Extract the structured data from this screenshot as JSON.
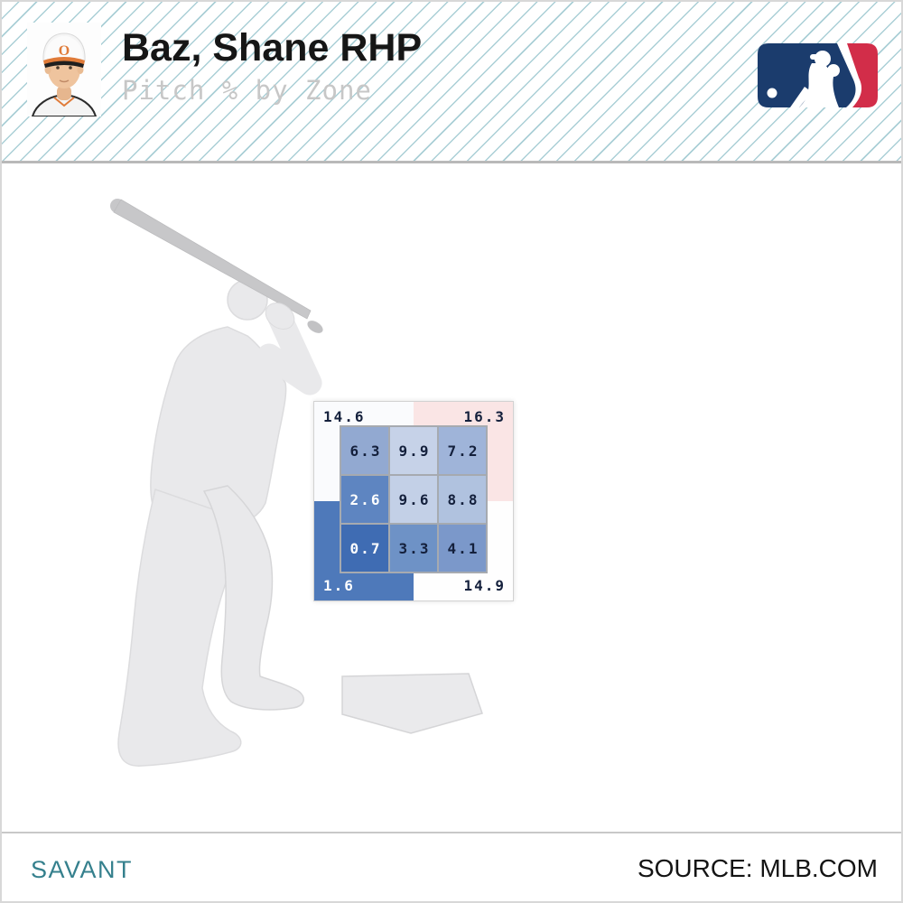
{
  "header": {
    "title": "Baz, Shane RHP",
    "subtitle": "Pitch % by Zone",
    "logo": {
      "navy": "#1b3c6d",
      "red": "#d22d49"
    }
  },
  "footer": {
    "brand": "SAVANT",
    "brand_color": "#35808d",
    "source": "SOURCE: MLB.COM"
  },
  "icons": {
    "player_photo": "player-headshot-photo",
    "mlb_logo": "mlb-logo",
    "batter": "batter-silhouette",
    "home_plate": "home-plate-icon"
  },
  "chart_data": {
    "type": "heatmap",
    "title": "Pitch % by Zone",
    "player": "Baz, Shane",
    "handedness": "RHP",
    "units": "percent",
    "legend_position": "none",
    "outer_zones": [
      {
        "position": "top-left",
        "value": 14.6,
        "bg": "#fafbfd",
        "fg": "#14203c"
      },
      {
        "position": "top-right",
        "value": 16.3,
        "bg": "#fae5e5",
        "fg": "#14203c"
      },
      {
        "position": "bottom-left",
        "value": 1.6,
        "bg": "#4e79ba",
        "fg": "#ffffff"
      },
      {
        "position": "bottom-right",
        "value": 14.9,
        "bg": "#fefefe",
        "fg": "#14203c"
      }
    ],
    "inner_zones": [
      {
        "row": 1,
        "col": 1,
        "value": 6.3,
        "bg": "#92a9d1",
        "fg": "#14203c"
      },
      {
        "row": 1,
        "col": 2,
        "value": 9.9,
        "bg": "#c6d2e8",
        "fg": "#14203c"
      },
      {
        "row": 1,
        "col": 3,
        "value": 7.2,
        "bg": "#9fb4d9",
        "fg": "#14203c"
      },
      {
        "row": 2,
        "col": 1,
        "value": 2.6,
        "bg": "#5e85c1",
        "fg": "#ffffff"
      },
      {
        "row": 2,
        "col": 2,
        "value": 9.6,
        "bg": "#c3d0e7",
        "fg": "#14203c"
      },
      {
        "row": 2,
        "col": 3,
        "value": 8.8,
        "bg": "#b0c2df",
        "fg": "#14203c"
      },
      {
        "row": 3,
        "col": 1,
        "value": 0.7,
        "bg": "#3f6cb3",
        "fg": "#ffffff"
      },
      {
        "row": 3,
        "col": 2,
        "value": 3.3,
        "bg": "#6e92c6",
        "fg": "#14203c"
      },
      {
        "row": 3,
        "col": 3,
        "value": 4.1,
        "bg": "#7b98ca",
        "fg": "#14203c"
      }
    ]
  }
}
